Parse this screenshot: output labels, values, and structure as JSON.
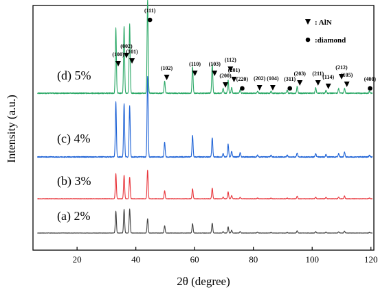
{
  "chart_data": {
    "type": "line",
    "xlabel": "2θ (degree)",
    "ylabel": "Intensity (a.u.)",
    "xlim": [
      5,
      121
    ],
    "xticks": [
      20,
      40,
      60,
      80,
      100,
      120
    ],
    "y_ticks_shown": false,
    "grid": false,
    "legend": {
      "position": "top-right",
      "entries": [
        {
          "marker": "triangle-down",
          "label": ": AlN"
        },
        {
          "marker": "circle",
          "label": ":diamond"
        }
      ]
    },
    "series": [
      {
        "name": "(a) 2%",
        "color": "#404040"
      },
      {
        "name": "(b) 3%",
        "color": "#e8343a"
      },
      {
        "name": "(c) 4%",
        "color": "#1f63d6"
      },
      {
        "name": "(d) 5%",
        "color": "#2aa866"
      }
    ],
    "peaks": [
      {
        "x": 33.2,
        "h": [
          0.8,
          0.73,
          0.68,
          0.7
        ]
      },
      {
        "x": 36.0,
        "h": [
          0.86,
          0.68,
          0.66,
          0.72
        ]
      },
      {
        "x": 37.9,
        "h": [
          0.87,
          0.63,
          0.63,
          0.74
        ]
      },
      {
        "x": 44.0,
        "h": [
          0.52,
          0.83,
          1.0,
          1.0
        ]
      },
      {
        "x": 49.8,
        "h": [
          0.26,
          0.23,
          0.18,
          0.13
        ]
      },
      {
        "x": 59.3,
        "h": [
          0.34,
          0.29,
          0.27,
          0.28
        ]
      },
      {
        "x": 66.0,
        "h": [
          0.36,
          0.31,
          0.24,
          0.31
        ]
      },
      {
        "x": 69.7,
        "h": [
          0.05,
          0.05,
          0.04,
          0.05
        ]
      },
      {
        "x": 71.4,
        "h": [
          0.23,
          0.2,
          0.16,
          0.14
        ]
      },
      {
        "x": 72.6,
        "h": [
          0.1,
          0.09,
          0.07,
          0.06
        ]
      },
      {
        "x": 75.5,
        "h": [
          0.05,
          0.04,
          0.05,
          0.04
        ]
      },
      {
        "x": 81.4,
        "h": [
          0.03,
          0.02,
          0.02,
          0.02
        ]
      },
      {
        "x": 86.0,
        "h": [
          0.02,
          0.02,
          0.02,
          0.02
        ]
      },
      {
        "x": 91.5,
        "h": [
          0.02,
          0.02,
          0.02,
          0.03
        ]
      },
      {
        "x": 94.9,
        "h": [
          0.08,
          0.07,
          0.05,
          0.07
        ]
      },
      {
        "x": 101.2,
        "h": [
          0.05,
          0.05,
          0.04,
          0.06
        ]
      },
      {
        "x": 104.7,
        "h": [
          0.03,
          0.04,
          0.03,
          0.03
        ]
      },
      {
        "x": 109.0,
        "h": [
          0.04,
          0.05,
          0.04,
          0.05
        ]
      },
      {
        "x": 111.0,
        "h": [
          0.07,
          0.08,
          0.06,
          0.05
        ]
      },
      {
        "x": 119.5,
        "h": [
          0.02,
          0.02,
          0.02,
          0.02
        ]
      }
    ],
    "annotations": [
      {
        "x": 34.0,
        "label": "(100)",
        "marker": "triangle"
      },
      {
        "x": 36.8,
        "label": "(002)",
        "marker": "triangle"
      },
      {
        "x": 38.7,
        "label": "(101)",
        "marker": "triangle"
      },
      {
        "x": 44.8,
        "label": "(111)",
        "marker": "circle"
      },
      {
        "x": 50.5,
        "label": "(102)",
        "marker": "triangle"
      },
      {
        "x": 60.1,
        "label": "(110)",
        "marker": "triangle"
      },
      {
        "x": 66.8,
        "label": "(103)",
        "marker": "triangle"
      },
      {
        "x": 70.5,
        "label": "(200)",
        "marker": "triangle"
      },
      {
        "x": 72.2,
        "label": "(112)",
        "marker": "triangle"
      },
      {
        "x": 73.4,
        "label": "(201)",
        "marker": "triangle"
      },
      {
        "x": 76.2,
        "label": "(220)",
        "marker": "circle"
      },
      {
        "x": 82.1,
        "label": "(202)",
        "marker": "triangle"
      },
      {
        "x": 86.6,
        "label": "(104)",
        "marker": "triangle"
      },
      {
        "x": 92.4,
        "label": "(311)",
        "marker": "circle"
      },
      {
        "x": 95.8,
        "label": "(203)",
        "marker": "triangle"
      },
      {
        "x": 102.0,
        "label": "(211)",
        "marker": "triangle"
      },
      {
        "x": 105.5,
        "label": "(114)",
        "marker": "triangle"
      },
      {
        "x": 110.0,
        "label": "(212)",
        "marker": "triangle"
      },
      {
        "x": 111.8,
        "label": "(105)",
        "marker": "triangle"
      },
      {
        "x": 119.7,
        "label": "(400)",
        "marker": "circle"
      }
    ]
  }
}
